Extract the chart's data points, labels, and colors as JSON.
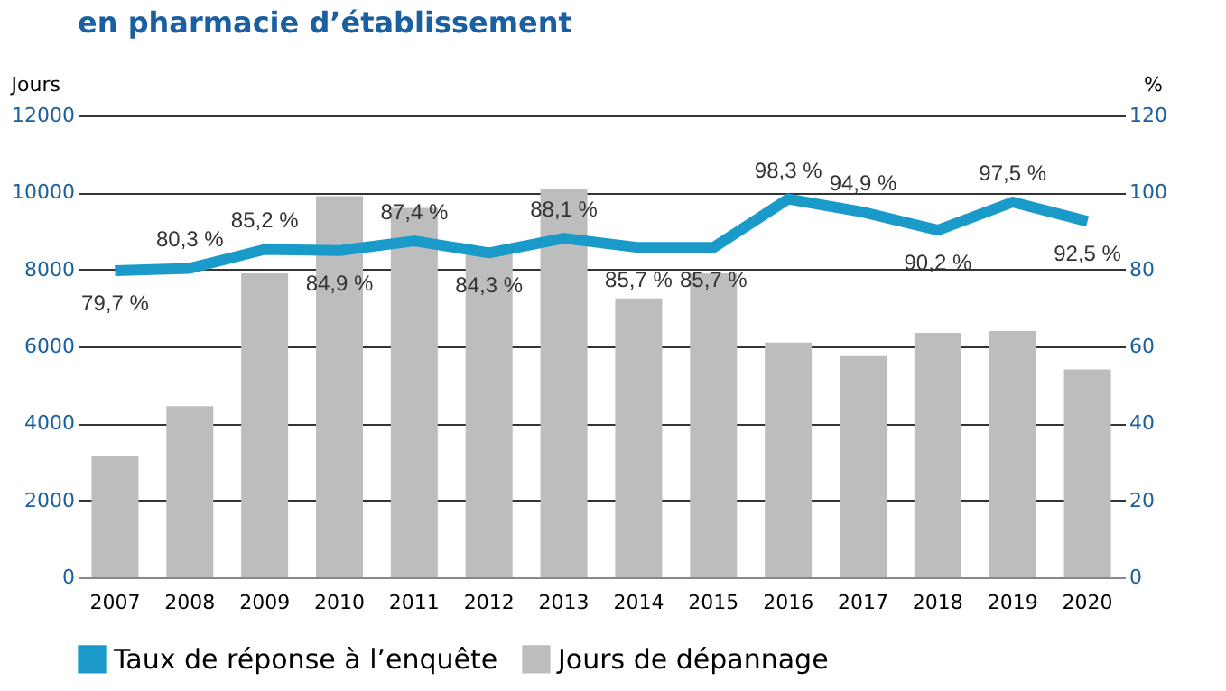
{
  "chart_data": {
    "type": "bar",
    "title": "en pharmacie d’établissement",
    "ylabel": "Jours",
    "y2label": "%",
    "categories": [
      "2007",
      "2008",
      "2009",
      "2010",
      "2011",
      "2012",
      "2013",
      "2014",
      "2015",
      "2016",
      "2017",
      "2018",
      "2019",
      "2020"
    ],
    "series": [
      {
        "name": "Taux de réponse à l’enquête",
        "type": "line",
        "axis": "y2",
        "color": "#1a9ac9",
        "values": [
          79.7,
          80.3,
          85.2,
          84.9,
          87.4,
          84.3,
          88.1,
          85.7,
          85.7,
          98.3,
          94.9,
          90.2,
          97.5,
          92.5
        ],
        "value_labels": [
          "79,7 %",
          "80,3 %",
          "85,2 %",
          "84,9 %",
          "87,4 %",
          "84,3 %",
          "88,1 %",
          "85,7 %",
          "85,7 %",
          "98,3 %",
          "94,9 %",
          "90,2 %",
          "97,5 %",
          "92,5 %"
        ]
      },
      {
        "name": "Jours de dépannage",
        "color": "#bdbdbd",
        "values": [
          3150,
          4450,
          7900,
          9900,
          9600,
          8450,
          10100,
          7250,
          7900,
          6100,
          5750,
          6350,
          6400,
          5400
        ]
      }
    ],
    "ylim": [
      0,
      12000
    ],
    "yticks": [
      0,
      2000,
      4000,
      6000,
      8000,
      10000,
      12000
    ],
    "y2lim": [
      0,
      120
    ],
    "y2ticks": [
      0,
      20,
      40,
      60,
      80,
      100,
      120
    ],
    "grid": "y",
    "legend": "bottom",
    "marker": "none",
    "line_style": "solid"
  }
}
